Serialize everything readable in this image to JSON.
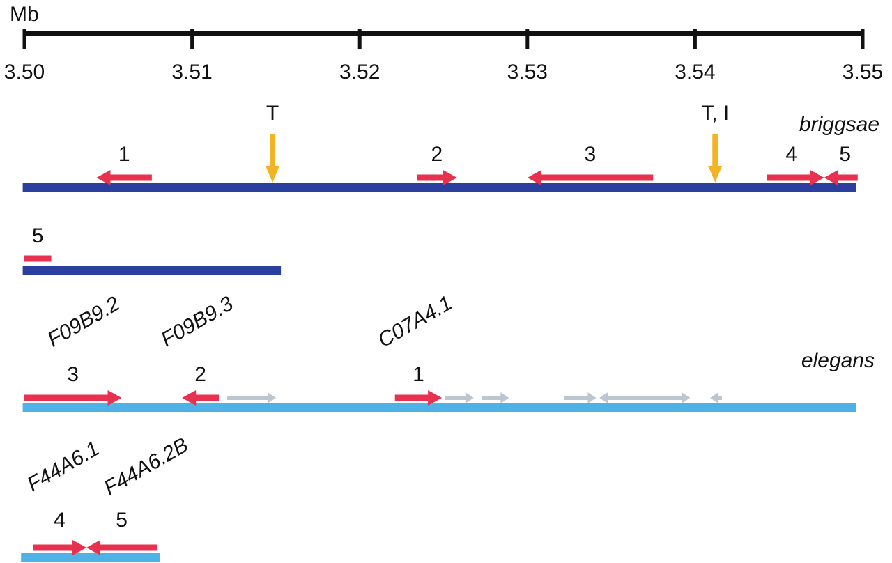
{
  "colors": {
    "briggsae_line": "#2b3f9e",
    "elegans_line": "#4fb2e6",
    "gene": "#e8304f",
    "other_gene": "#bcc6cf",
    "marker": "#f2b424",
    "axis": "#111111"
  },
  "scale": {
    "unit": "Mb",
    "ticks": [
      "3.50",
      "3.51",
      "3.52",
      "3.53",
      "3.54",
      "3.55"
    ]
  },
  "markers": [
    {
      "label": "T",
      "position_mb": 3.5148
    },
    {
      "label": "T, I",
      "position_mb": 3.5412
    }
  ],
  "briggsae": {
    "species": "briggsae",
    "main_contig": {
      "span_mb": [
        3.4999,
        3.5496
      ],
      "genes": [
        {
          "label": "1",
          "strand": "-",
          "span_mb": [
            3.5043,
            3.5076
          ]
        },
        {
          "label": "2",
          "strand": "+",
          "span_mb": [
            3.5234,
            3.5258
          ]
        },
        {
          "label": "3",
          "strand": "-",
          "span_mb": [
            3.53,
            3.5375
          ]
        },
        {
          "label": "4",
          "strand": "+",
          "span_mb": [
            3.5443,
            3.5477
          ]
        },
        {
          "label": "5",
          "strand": "-",
          "span_mb": [
            3.5477,
            3.5497
          ]
        }
      ]
    },
    "second_contig": {
      "span_mb": [
        3.4999,
        3.5153
      ],
      "genes": [
        {
          "label": "5",
          "strand": "none",
          "span_mb": [
            3.5,
            3.5016
          ]
        }
      ]
    }
  },
  "elegans": {
    "species": "elegans",
    "main_contig": {
      "span_mb": [
        3.4999,
        3.5496
      ],
      "genes": [
        {
          "label": "3",
          "name": "F09B9.2",
          "strand": "+",
          "span_mb": [
            3.5,
            3.5058
          ]
        },
        {
          "label": "2",
          "name": "F09B9.3",
          "strand": "-",
          "span_mb": [
            3.5094,
            3.5116
          ]
        },
        {
          "label": "1",
          "name": "C07A4.1",
          "strand": "+",
          "span_mb": [
            3.5221,
            3.5249
          ]
        }
      ],
      "other_genes": [
        {
          "strand": "+",
          "span_mb": [
            3.5121,
            3.515
          ]
        },
        {
          "strand": "+",
          "span_mb": [
            3.5251,
            3.5268
          ]
        },
        {
          "strand": "+",
          "span_mb": [
            3.5273,
            3.5289
          ]
        },
        {
          "strand": "+",
          "span_mb": [
            3.5322,
            3.5341
          ]
        },
        {
          "strand": "-",
          "span_mb": [
            3.5343,
            3.5389
          ]
        },
        {
          "strand": "+",
          "span_mb": [
            3.536,
            3.5397
          ]
        },
        {
          "strand": "-",
          "span_mb": [
            3.5409,
            3.5416
          ]
        }
      ]
    },
    "second_contig": {
      "span_mb": [
        3.4998,
        3.5081
      ],
      "genes": [
        {
          "label": "4",
          "name": "F44A6.1",
          "strand": "+",
          "span_mb": [
            3.5005,
            3.5037
          ]
        },
        {
          "label": "5",
          "name": "F44A6.2B",
          "strand": "-",
          "span_mb": [
            3.5037,
            3.5079
          ]
        }
      ]
    }
  }
}
